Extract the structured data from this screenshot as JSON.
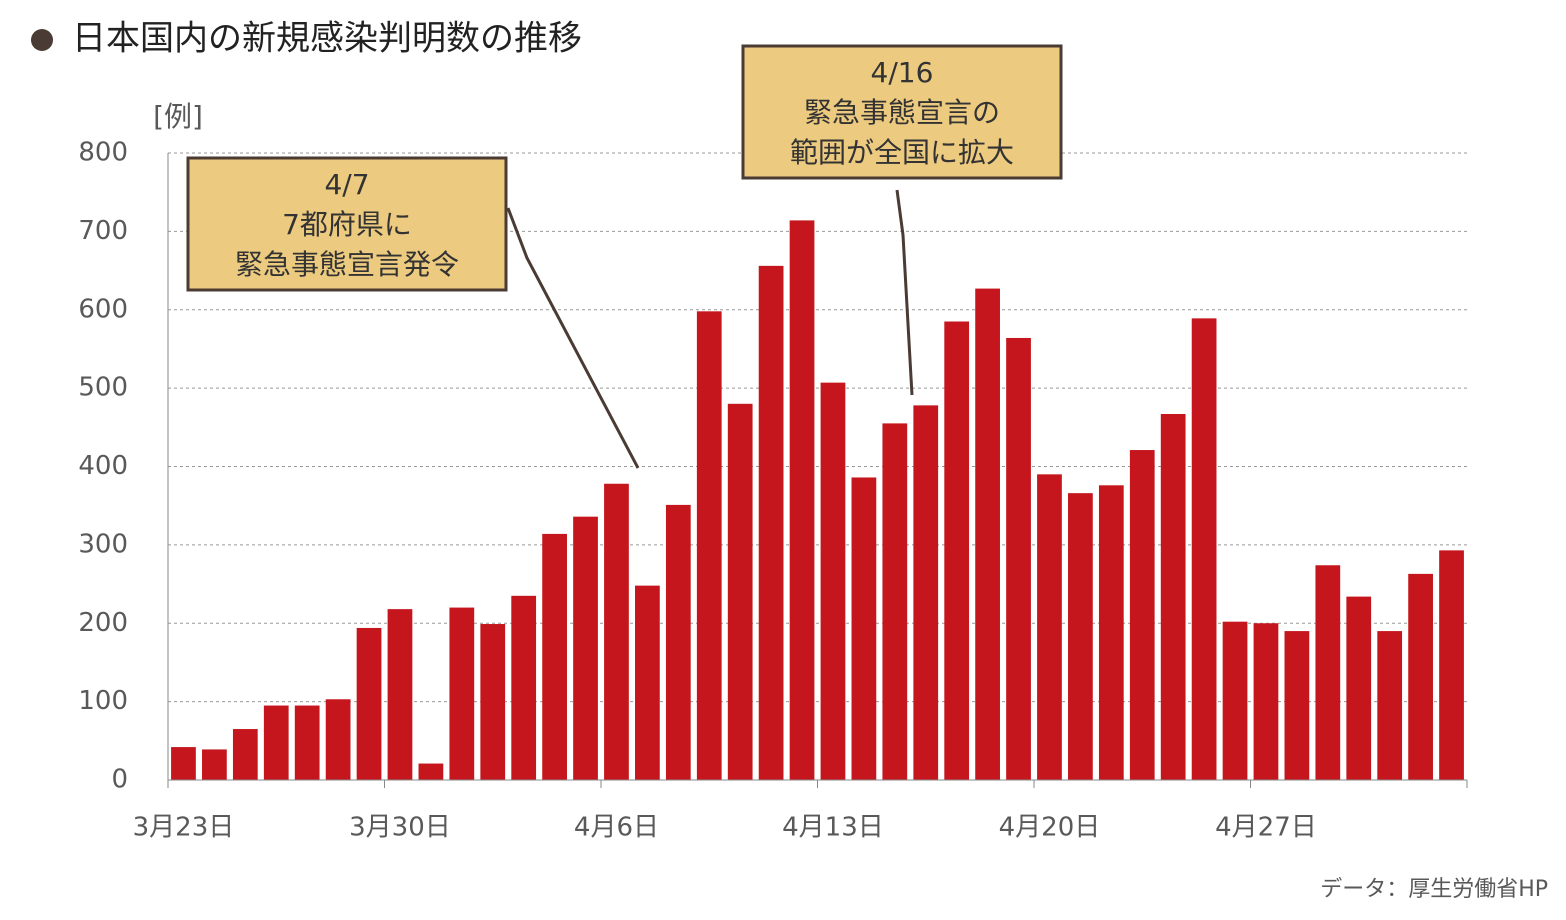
{
  "chart_data": {
    "type": "bar",
    "title": "日本国内の新規感染判明数の推移",
    "y_label": "[例]",
    "source": "データ：厚生労働省HP",
    "color": "#c4161c",
    "categories": [
      "3月23日",
      null,
      null,
      null,
      null,
      null,
      null,
      "3月30日",
      null,
      null,
      null,
      null,
      null,
      null,
      "4月6日",
      null,
      null,
      null,
      null,
      null,
      null,
      "4月13日",
      null,
      null,
      null,
      null,
      null,
      null,
      "4月20日",
      null,
      null,
      null,
      null,
      null,
      null,
      "4月27日",
      null,
      null,
      null,
      null,
      null,
      null
    ],
    "values": [
      42,
      39,
      65,
      95,
      95,
      103,
      194,
      218,
      21,
      220,
      199,
      235,
      314,
      336,
      378,
      248,
      351,
      598,
      480,
      656,
      714,
      507,
      386,
      455,
      478,
      585,
      627,
      564,
      390,
      366,
      376,
      421,
      467,
      589,
      202,
      200,
      190,
      274,
      234,
      190,
      263,
      293
    ],
    "ylim": [
      0,
      800
    ],
    "yticks": [
      0,
      100,
      200,
      300,
      400,
      500,
      600,
      700,
      800
    ],
    "grid": true,
    "annotations": [
      {
        "lines": [
          "4/7",
          "7都府県に",
          "緊急事態宣言発令"
        ]
      },
      {
        "lines": [
          "4/16",
          "緊急事態宣言の",
          "範囲が全国に拡大"
        ]
      }
    ]
  }
}
